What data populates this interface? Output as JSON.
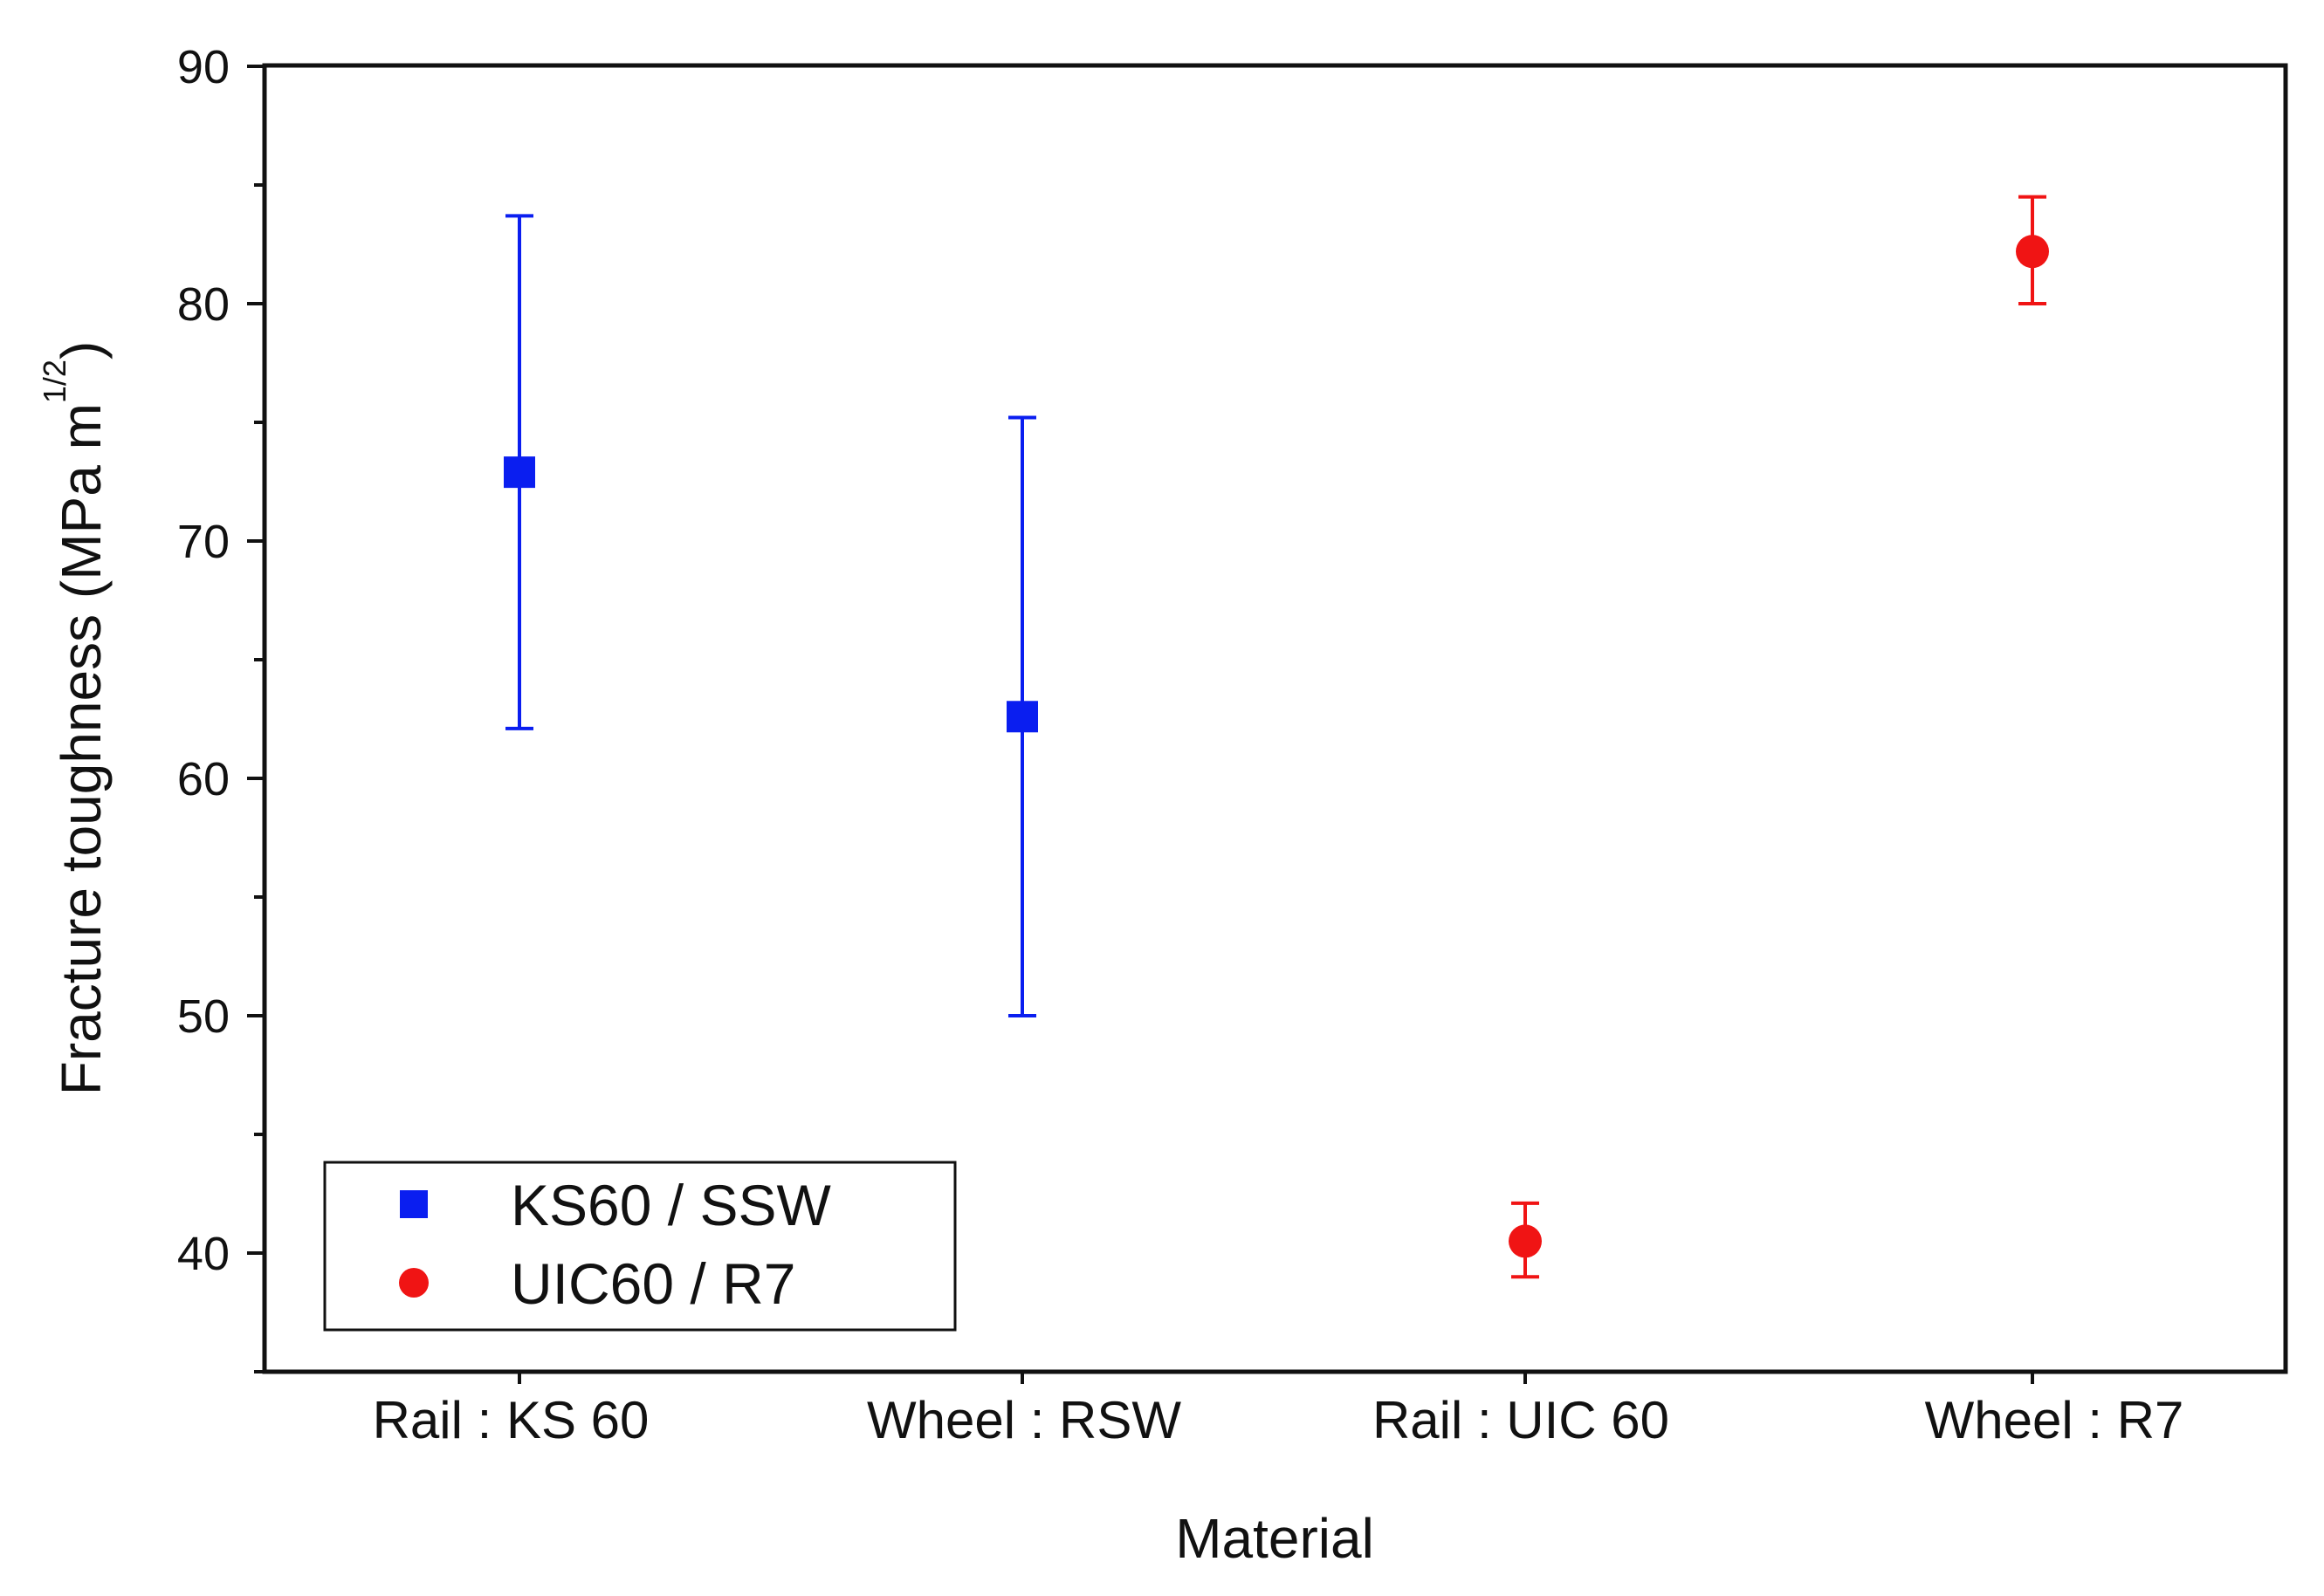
{
  "chart_data": {
    "type": "scatter",
    "title": "",
    "xlabel": "Material",
    "ylabel": {
      "main": "Fracture toughness (MPa m",
      "superscript": "1/2",
      "close": ")"
    },
    "categories": [
      "Rail : KS 60",
      "Wheel : RSW",
      "Rail : UIC 60",
      "Wheel : R7"
    ],
    "ylim": [
      35,
      90
    ],
    "yticks": [
      40,
      50,
      60,
      70,
      80,
      90
    ],
    "yminor_step": 5,
    "grid": false,
    "legend_position": "bottom-left",
    "series": [
      {
        "name": "KS60 / SSW",
        "marker": "square",
        "color": "#0a1ef0",
        "points": [
          {
            "category": "Rail : KS 60",
            "y": 72.9,
            "y_low": 62.1,
            "y_high": 83.7
          },
          {
            "category": "Wheel : RSW",
            "y": 62.6,
            "y_low": 50.0,
            "y_high": 75.2
          }
        ]
      },
      {
        "name": "UIC60 / R7",
        "marker": "circle",
        "color": "#f01414",
        "points": [
          {
            "category": "Rail : UIC 60",
            "y": 40.5,
            "y_low": 39.0,
            "y_high": 42.1
          },
          {
            "category": "Wheel : R7",
            "y": 82.2,
            "y_low": 80.0,
            "y_high": 84.5
          }
        ]
      }
    ]
  }
}
